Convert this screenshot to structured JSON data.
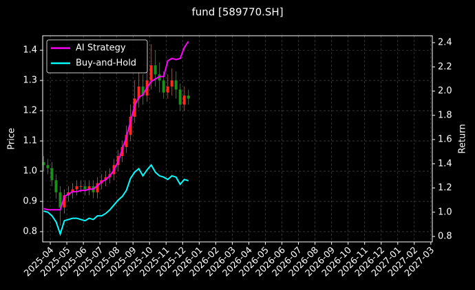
{
  "chart_data": {
    "type": "candlestick",
    "title": "fund [589770.SH]",
    "ylabel": "Price",
    "y2label": "Return",
    "x": [
      -0.4,
      -0.15,
      0.1,
      0.35,
      0.6,
      0.85,
      1.1,
      1.35,
      1.6,
      1.85,
      2.1,
      2.35,
      2.6,
      2.85,
      3.1,
      3.35,
      3.6,
      3.85,
      4.1,
      4.35,
      4.6,
      4.85,
      5.1,
      5.35,
      5.6,
      5.85,
      6.1,
      6.35,
      6.6,
      6.85,
      7.1,
      7.35,
      7.6,
      7.85,
      8.1,
      8.35
    ],
    "open": [
      1.03,
      1.02,
      1.01,
      0.97,
      0.93,
      0.88,
      0.92,
      0.93,
      0.94,
      0.95,
      0.95,
      0.94,
      0.95,
      0.93,
      0.96,
      0.97,
      0.98,
      0.99,
      1.02,
      1.05,
      1.08,
      1.12,
      1.18,
      1.24,
      1.28,
      1.25,
      1.3,
      1.35,
      1.32,
      1.3,
      1.26,
      1.28,
      1.3,
      1.27,
      1.22,
      1.25
    ],
    "high": [
      1.05,
      1.04,
      1.03,
      0.99,
      0.95,
      0.94,
      0.95,
      0.96,
      0.97,
      0.97,
      0.97,
      0.97,
      0.97,
      0.98,
      0.99,
      1.0,
      1.01,
      1.04,
      1.07,
      1.1,
      1.15,
      1.22,
      1.3,
      1.33,
      1.32,
      1.36,
      1.42,
      1.4,
      1.36,
      1.33,
      1.32,
      1.34,
      1.33,
      1.29,
      1.28,
      1.27
    ],
    "low": [
      1.0,
      0.99,
      0.95,
      0.91,
      0.82,
      0.86,
      0.9,
      0.91,
      0.92,
      0.93,
      0.92,
      0.92,
      0.91,
      0.91,
      0.94,
      0.95,
      0.96,
      0.97,
      1.0,
      1.03,
      1.06,
      1.1,
      1.16,
      1.21,
      1.22,
      1.23,
      1.27,
      1.28,
      1.26,
      1.24,
      1.24,
      1.25,
      1.24,
      1.2,
      1.2,
      1.22
    ],
    "close": [
      1.02,
      1.01,
      0.97,
      0.93,
      0.88,
      0.92,
      0.93,
      0.94,
      0.95,
      0.95,
      0.94,
      0.95,
      0.93,
      0.96,
      0.97,
      0.98,
      0.99,
      1.02,
      1.05,
      1.08,
      1.12,
      1.18,
      1.24,
      1.28,
      1.25,
      1.3,
      1.35,
      1.32,
      1.3,
      1.26,
      1.28,
      1.3,
      1.27,
      1.22,
      1.25,
      1.24
    ],
    "up_color": "#ff2a1a",
    "down_color": "#1a8f1a",
    "series": [
      {
        "name": "AI Strategy",
        "color": "#ff00ff",
        "axis": "y2",
        "values": [
          1.03,
          1.02,
          1.02,
          1.02,
          1.02,
          1.13,
          1.15,
          1.17,
          1.17,
          1.18,
          1.18,
          1.19,
          1.19,
          1.22,
          1.25,
          1.27,
          1.3,
          1.35,
          1.42,
          1.52,
          1.62,
          1.75,
          1.88,
          1.95,
          1.97,
          2.03,
          2.08,
          2.1,
          2.12,
          2.12,
          2.25,
          2.27,
          2.26,
          2.27,
          2.36,
          2.41
        ]
      },
      {
        "name": "Buy-and-Hold",
        "color": "#00ffff",
        "axis": "y2",
        "values": [
          1.01,
          1.0,
          0.97,
          0.92,
          0.82,
          0.93,
          0.94,
          0.95,
          0.95,
          0.94,
          0.93,
          0.95,
          0.94,
          0.97,
          0.97,
          0.99,
          1.02,
          1.06,
          1.1,
          1.13,
          1.18,
          1.28,
          1.33,
          1.36,
          1.3,
          1.35,
          1.39,
          1.33,
          1.3,
          1.29,
          1.27,
          1.3,
          1.29,
          1.23,
          1.27,
          1.26
        ]
      }
    ],
    "xlim": [
      -0.46,
      23.09
    ],
    "xticks": [
      {
        "value": 0,
        "label": "2025-04"
      },
      {
        "value": 1,
        "label": "2025-05"
      },
      {
        "value": 2,
        "label": "2025-06"
      },
      {
        "value": 3,
        "label": "2025-07"
      },
      {
        "value": 4,
        "label": "2025-08"
      },
      {
        "value": 5,
        "label": "2025-09"
      },
      {
        "value": 6,
        "label": "2025-10"
      },
      {
        "value": 7,
        "label": "2025-11"
      },
      {
        "value": 8,
        "label": "2025-12"
      },
      {
        "value": 9,
        "label": "2026-01"
      },
      {
        "value": 10,
        "label": "2026-02"
      },
      {
        "value": 11,
        "label": "2026-03"
      },
      {
        "value": 12,
        "label": "2026-04"
      },
      {
        "value": 13,
        "label": "2026-05"
      },
      {
        "value": 14,
        "label": "2026-06"
      },
      {
        "value": 15,
        "label": "2026-07"
      },
      {
        "value": 16,
        "label": "2026-08"
      },
      {
        "value": 17,
        "label": "2026-09"
      },
      {
        "value": 18,
        "label": "2026-10"
      },
      {
        "value": 19,
        "label": "2026-11"
      },
      {
        "value": 20,
        "label": "2026-12"
      },
      {
        "value": 21,
        "label": "2027-01"
      },
      {
        "value": 22,
        "label": "2027-02"
      },
      {
        "value": 23,
        "label": "2027-03"
      }
    ],
    "ylim": [
      0.766,
      1.448
    ],
    "yticks": [
      {
        "value": 0.8,
        "label": "0.8"
      },
      {
        "value": 0.9,
        "label": "0.9"
      },
      {
        "value": 1.0,
        "label": "1.0"
      },
      {
        "value": 1.1,
        "label": "1.1"
      },
      {
        "value": 1.2,
        "label": "1.2"
      },
      {
        "value": 1.3,
        "label": "1.3"
      },
      {
        "value": 1.4,
        "label": "1.4"
      }
    ],
    "y2lim": [
      0.755,
      2.457
    ],
    "y2ticks": [
      {
        "value": 0.8,
        "label": "0.8"
      },
      {
        "value": 1.0,
        "label": "1.0"
      },
      {
        "value": 1.2,
        "label": "1.2"
      },
      {
        "value": 1.4,
        "label": "1.4"
      },
      {
        "value": 1.6,
        "label": "1.6"
      },
      {
        "value": 1.8,
        "label": "1.8"
      },
      {
        "value": 2.0,
        "label": "2.0"
      },
      {
        "value": 2.2,
        "label": "2.2"
      },
      {
        "value": 2.4,
        "label": "2.4"
      }
    ],
    "grid": true,
    "legend": "upper left"
  }
}
